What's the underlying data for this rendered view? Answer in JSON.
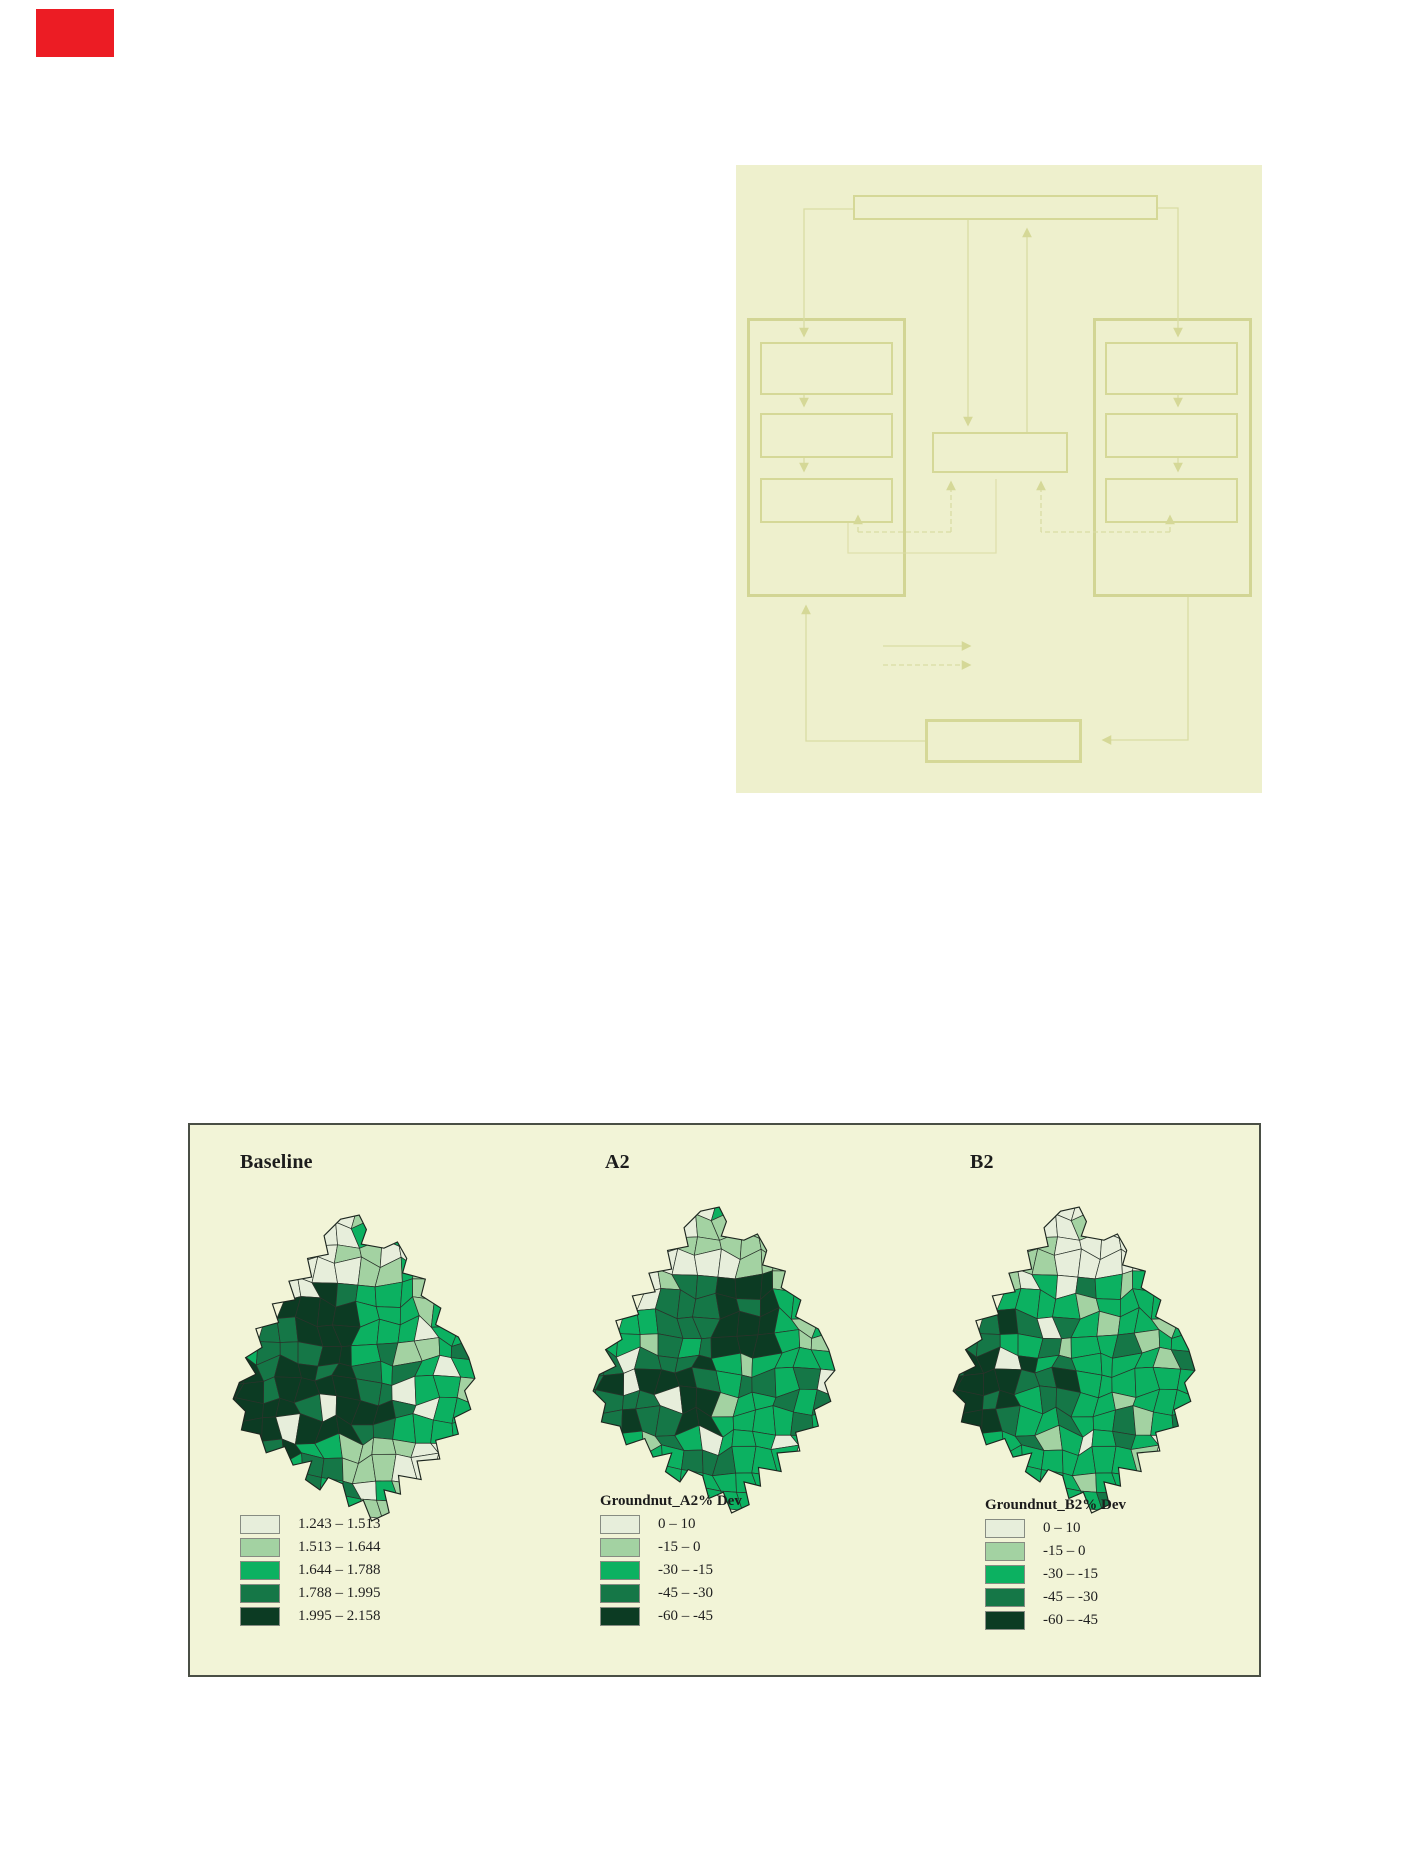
{
  "page": {
    "background": "#ffffff"
  },
  "red_mark": {
    "color": "#ec1c24"
  },
  "flowchart": {
    "background": "#eef0cd",
    "box_border_color": "#d5d897",
    "connector_color": "#d9dca4",
    "box_labels": [],
    "top_box_count": 1,
    "left_column_box_count": 3,
    "right_column_box_count": 3,
    "center_box_count": 1,
    "bottom_box_count": 1
  },
  "figure": {
    "background": "#f2f4d7",
    "border_color": "#4a4f45",
    "class_colors": [
      "#e7eedb",
      "#a3d2a2",
      "#0cb161",
      "#157747",
      "#0c3b23"
    ],
    "maps": [
      {
        "id": "baseline",
        "title": "Baseline",
        "legend": {
          "title": "",
          "items": [
            {
              "color": "#e7eedb",
              "label": "1.243 – 1.513"
            },
            {
              "color": "#a3d2a2",
              "label": "1.513 – 1.644"
            },
            {
              "color": "#0cb161",
              "label": "1.644 – 1.788"
            },
            {
              "color": "#157747",
              "label": "1.788 – 1.995"
            },
            {
              "color": "#0c3b23",
              "label": "1.995 – 2.158"
            }
          ]
        },
        "zones": [
          [
            0,
            0,
            1,
            1
          ],
          [
            3,
            4,
            2,
            2
          ],
          [
            4,
            4,
            3,
            2
          ],
          [
            4,
            2,
            1,
            0
          ]
        ]
      },
      {
        "id": "a2",
        "title": "A2",
        "legend": {
          "title": "Groundnut_A2% Dev",
          "items": [
            {
              "color": "#e7eedb",
              "label": "0 – 10"
            },
            {
              "color": "#a3d2a2",
              "label": "-15 – 0"
            },
            {
              "color": "#0cb161",
              "label": "-30 – -15"
            },
            {
              "color": "#157747",
              "label": "-45 – -30"
            },
            {
              "color": "#0c3b23",
              "label": "-60 – -45"
            }
          ]
        },
        "zones": [
          [
            0,
            0,
            1,
            1
          ],
          [
            2,
            3,
            4,
            2
          ],
          [
            3,
            4,
            2,
            2
          ],
          [
            2,
            2,
            2,
            2
          ]
        ]
      },
      {
        "id": "b2",
        "title": "B2",
        "legend": {
          "title": "Groundnut_B2% Dev",
          "items": [
            {
              "color": "#e7eedb",
              "label": "0 – 10"
            },
            {
              "color": "#a3d2a2",
              "label": "-15 – 0"
            },
            {
              "color": "#0cb161",
              "label": "-30 – -15"
            },
            {
              "color": "#157747",
              "label": "-45 – -30"
            },
            {
              "color": "#0c3b23",
              "label": "-60 – -45"
            }
          ]
        },
        "zones": [
          [
            1,
            0,
            0,
            1
          ],
          [
            3,
            2,
            2,
            2
          ],
          [
            4,
            3,
            2,
            2
          ],
          [
            2,
            2,
            2,
            1
          ]
        ]
      }
    ]
  },
  "chart_data": [
    {
      "type": "heatmap",
      "subtype": "choropleth-district-map",
      "title": "Baseline",
      "legend_title": "",
      "legend_position": "bottom-left",
      "classes": [
        {
          "range": "1.243 – 1.513",
          "color": "#e7eedb"
        },
        {
          "range": "1.513 – 1.644",
          "color": "#a3d2a2"
        },
        {
          "range": "1.644 – 1.788",
          "color": "#0cb161"
        },
        {
          "range": "1.788 – 1.995",
          "color": "#157747"
        },
        {
          "range": "1.995 – 2.158",
          "color": "#0c3b23"
        }
      ],
      "pattern": "dark high-value cluster in west/southwest, pale low values in north and southeast"
    },
    {
      "type": "heatmap",
      "subtype": "choropleth-district-map",
      "title": "A2",
      "legend_title": "Groundnut_A2% Dev",
      "legend_position": "bottom-left",
      "classes": [
        {
          "range": "0 – 10",
          "color": "#e7eedb"
        },
        {
          "range": "-15 – 0",
          "color": "#a3d2a2"
        },
        {
          "range": "-30 – -15",
          "color": "#0cb161"
        },
        {
          "range": "-45 – -30",
          "color": "#157747"
        },
        {
          "range": "-60 – -45",
          "color": "#0c3b23"
        }
      ],
      "pattern": "strong negative deviations in center-west, near-zero in north"
    },
    {
      "type": "heatmap",
      "subtype": "choropleth-district-map",
      "title": "B2",
      "legend_title": "Groundnut_B2% Dev",
      "legend_position": "bottom-left",
      "classes": [
        {
          "range": "0 – 10",
          "color": "#e7eedb"
        },
        {
          "range": "-15 – 0",
          "color": "#a3d2a2"
        },
        {
          "range": "-30 – -15",
          "color": "#0cb161"
        },
        {
          "range": "-45 – -30",
          "color": "#157747"
        },
        {
          "range": "-60 – -45",
          "color": "#0c3b23"
        }
      ],
      "pattern": "moderate negative deviations widespread, scattered dark patches in west"
    }
  ]
}
